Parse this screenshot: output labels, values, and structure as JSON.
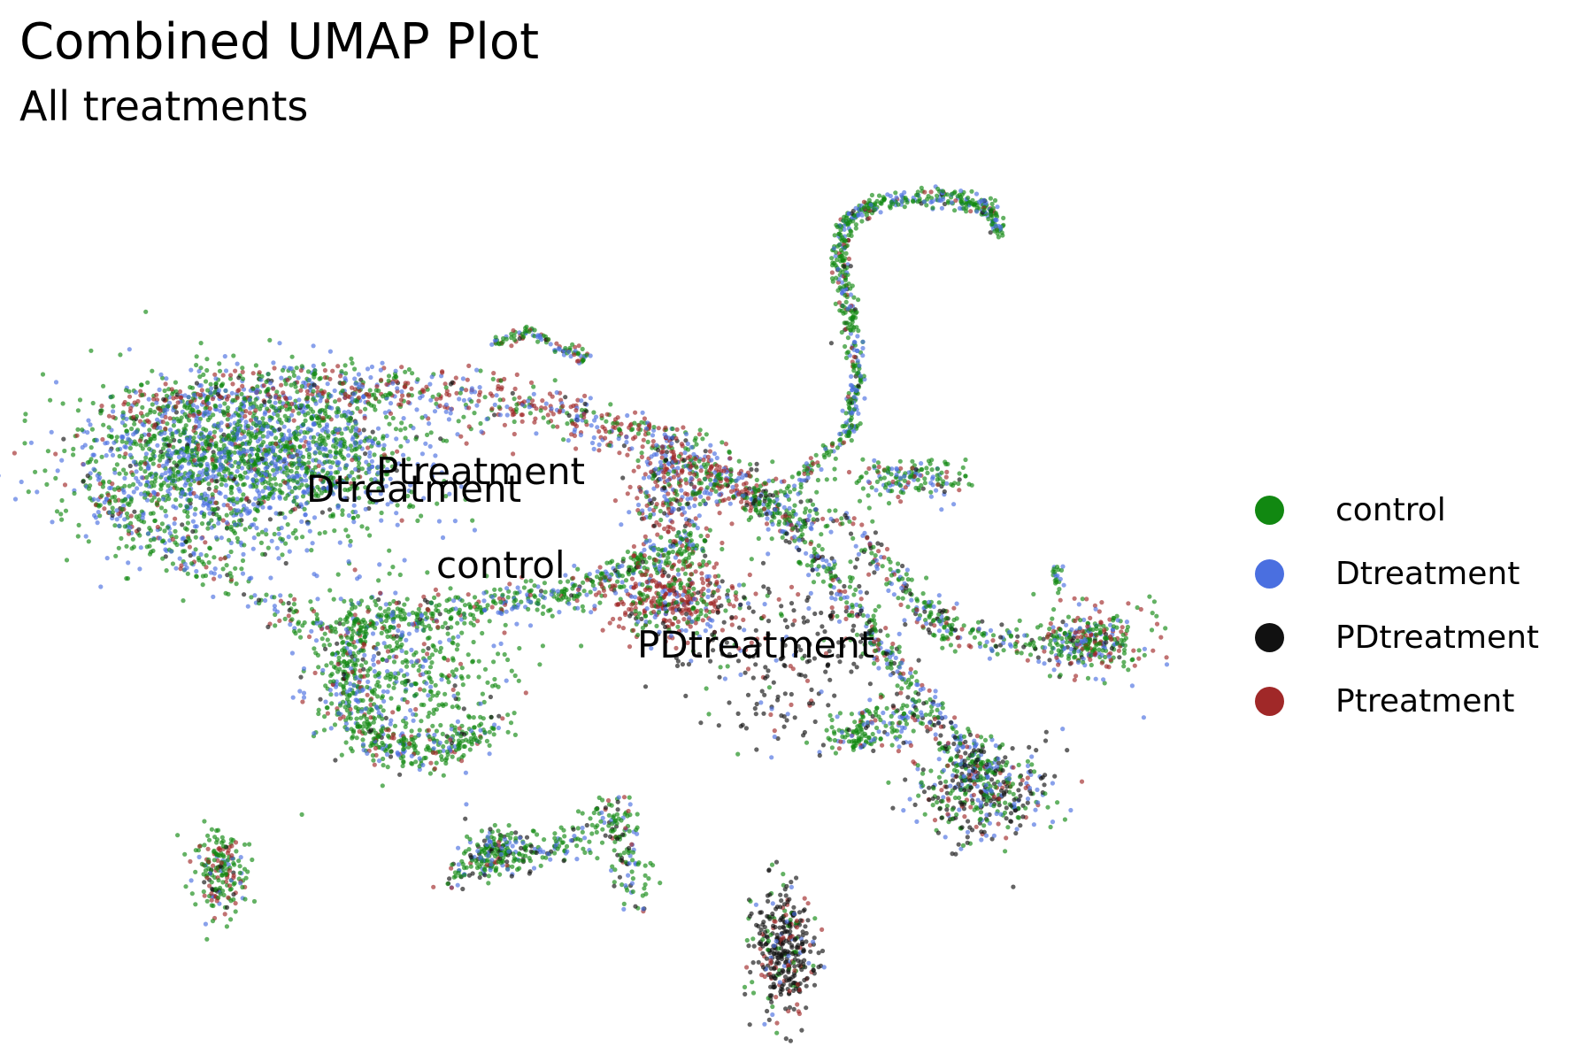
{
  "header": {
    "title": "Combined UMAP Plot",
    "subtitle": "All treatments"
  },
  "chart_data": {
    "type": "scatter",
    "title": "Combined UMAP Plot",
    "subtitle": "All treatments",
    "xlabel": "",
    "ylabel": "",
    "axes_visible": false,
    "grid": false,
    "legend_position": "right",
    "legend": [
      "control",
      "Dtreatment",
      "PDtreatment",
      "Ptreatment"
    ],
    "colors": {
      "control": "#118811",
      "Dtreatment": "#4a6fe0",
      "PDtreatment": "#111111",
      "Ptreatment": "#a02828"
    },
    "cluster_labels": [
      "Ptreatment",
      "Dtreatment",
      "control",
      "PDtreatment"
    ]
  }
}
